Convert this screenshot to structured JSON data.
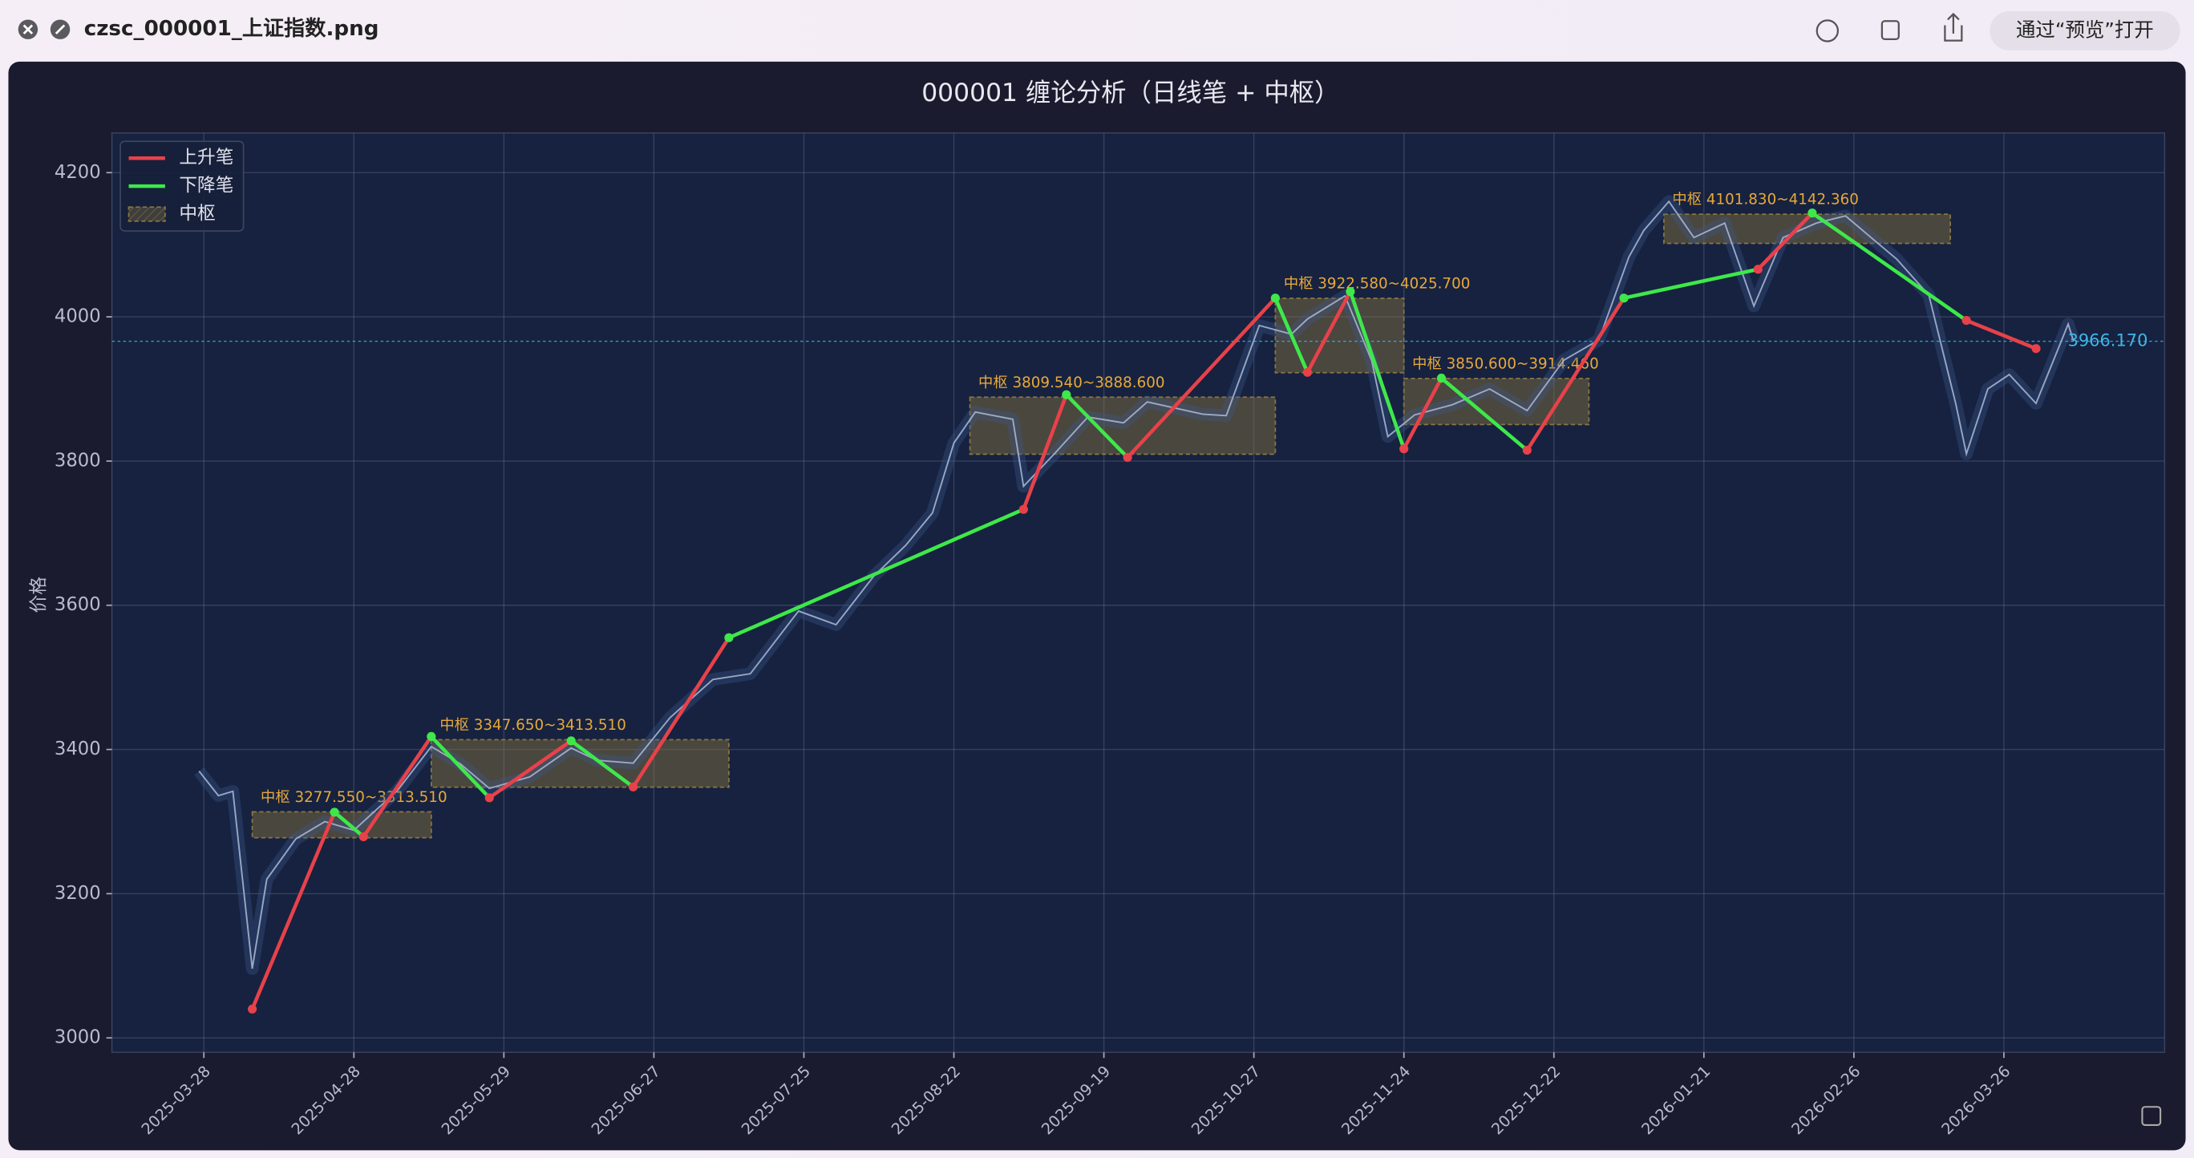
{
  "window": {
    "title": "czsc_000001_上证指数.png",
    "open_button": "通过“预览”打开"
  },
  "chart_data": {
    "type": "line",
    "title": "000001 缠论分析（日线笔 + 中枢）",
    "y_label": "价格",
    "xlim": [
      "2025-03-09",
      "2026-04-25"
    ],
    "xticks": [
      "2025-03-28",
      "2025-04-28",
      "2025-05-29",
      "2025-06-27",
      "2025-07-25",
      "2025-08-22",
      "2025-09-19",
      "2025-10-27",
      "2025-11-24",
      "2025-12-22",
      "2026-01-21",
      "2026-02-26",
      "2026-03-26"
    ],
    "ylim": [
      2980,
      4255
    ],
    "yticks": [
      3000,
      3200,
      3400,
      3600,
      3800,
      4000,
      4200
    ],
    "grid": true,
    "legend_position": "upper left",
    "price": {
      "color": "#aebbd6",
      "x": [
        "2025-03-27",
        "2025-03-31",
        "2025-04-03",
        "2025-04-07",
        "2025-04-10",
        "2025-04-16",
        "2025-04-22",
        "2025-04-28",
        "2025-05-07",
        "2025-05-14",
        "2025-05-20",
        "2025-05-26",
        "2025-06-03",
        "2025-06-11",
        "2025-06-16",
        "2025-06-23",
        "2025-06-30",
        "2025-07-08",
        "2025-07-15",
        "2025-07-24",
        "2025-07-31",
        "2025-08-07",
        "2025-08-13",
        "2025-08-18",
        "2025-08-22",
        "2025-08-26",
        "2025-09-02",
        "2025-09-04",
        "2025-09-10",
        "2025-09-16",
        "2025-09-24",
        "2025-09-30",
        "2025-10-14",
        "2025-10-20",
        "2025-10-28",
        "2025-11-03",
        "2025-11-06",
        "2025-11-13",
        "2025-11-18",
        "2025-11-21",
        "2025-11-26",
        "2025-12-03",
        "2025-12-10",
        "2025-12-17",
        "2025-12-24",
        "2025-12-31",
        "2026-01-06",
        "2026-01-09",
        "2026-01-14",
        "2026-01-19",
        "2026-01-26",
        "2026-02-02",
        "2026-02-09",
        "2026-02-17",
        "2026-02-24",
        "2026-03-02",
        "2026-03-06",
        "2026-03-12",
        "2026-03-17",
        "2026-03-19",
        "2026-03-23",
        "2026-03-27",
        "2026-04-01",
        "2026-04-07",
        "2026-04-08"
      ],
      "values": [
        3370,
        3336,
        3342,
        3096,
        3220,
        3276,
        3300,
        3288,
        3343,
        3404,
        3380,
        3346,
        3362,
        3402,
        3385,
        3381,
        3444,
        3497,
        3505,
        3592,
        3573,
        3640,
        3683,
        3728,
        3825,
        3868,
        3858,
        3765,
        3812,
        3861,
        3853,
        3882,
        3865,
        3863,
        3988,
        3976,
        3997,
        4029,
        3939,
        3834,
        3864,
        3878,
        3900,
        3870,
        3940,
        3968,
        4083,
        4120,
        4160,
        4110,
        4130,
        4015,
        4110,
        4130,
        4140,
        4105,
        4080,
        4030,
        3880,
        3810,
        3900,
        3920,
        3880,
        3990,
        3966.17
      ]
    },
    "series": [
      {
        "name": "上升笔",
        "color": "#e8414a",
        "x": [
          "2025-04-07",
          "2025-04-24",
          null,
          "2025-04-30",
          "2025-05-14",
          null,
          "2025-05-26",
          "2025-06-11",
          null,
          "2025-06-23",
          "2025-07-11",
          null,
          "2025-09-04",
          "2025-09-12",
          null,
          "2025-09-25",
          "2025-10-31",
          null,
          "2025-11-06",
          "2025-11-14",
          null,
          "2025-11-24",
          "2025-12-01",
          null,
          "2025-12-17",
          "2026-01-05",
          null,
          "2026-02-03",
          "2026-02-16",
          null,
          "2026-03-19",
          "2026-04-01"
        ],
        "values": [
          3040,
          3313,
          null,
          3279,
          3418,
          null,
          3333,
          3412,
          null,
          3348,
          3555,
          null,
          3733,
          3892,
          null,
          3805,
          4026,
          null,
          3923,
          4035,
          null,
          3817,
          3915,
          null,
          3815,
          4026,
          null,
          4066,
          4144,
          null,
          3995,
          3956
        ]
      },
      {
        "name": "下降笔",
        "color": "#3ee84a",
        "x": [
          "2025-04-24",
          "2025-04-30",
          null,
          "2025-05-14",
          "2025-05-26",
          null,
          "2025-06-11",
          "2025-06-23",
          null,
          "2025-07-11",
          "2025-09-04",
          null,
          "2025-09-12",
          "2025-09-25",
          null,
          "2025-10-31",
          "2025-11-06",
          null,
          "2025-11-14",
          "2025-11-24",
          null,
          "2025-12-01",
          "2025-12-17",
          null,
          "2026-01-05",
          "2026-02-03",
          null,
          "2026-02-16",
          "2026-03-19"
        ],
        "values": [
          3313,
          3279,
          null,
          3418,
          3333,
          null,
          3412,
          3348,
          null,
          3555,
          3733,
          null,
          3892,
          3805,
          null,
          4026,
          3923,
          null,
          4035,
          3817,
          null,
          3915,
          3815,
          null,
          4026,
          4066,
          null,
          4144,
          3995
        ]
      }
    ],
    "zhongshu_name": "中枢",
    "zhongshu_color": "#8a7640",
    "zhongshu": [
      {
        "label": "中枢 3277.550~3313.510",
        "start": "2025-04-07",
        "end": "2025-05-14",
        "low": 3277.55,
        "high": 3313.51
      },
      {
        "label": "中枢 3347.650~3413.510",
        "start": "2025-05-14",
        "end": "2025-07-11",
        "low": 3347.65,
        "high": 3413.51
      },
      {
        "label": "中枢 3809.540~3888.600",
        "start": "2025-08-25",
        "end": "2025-10-31",
        "low": 3809.54,
        "high": 3888.6
      },
      {
        "label": "中枢 3922.580~4025.700",
        "start": "2025-10-31",
        "end": "2025-11-24",
        "low": 3922.58,
        "high": 4025.7
      },
      {
        "label": "中枢 3850.600~3914.460",
        "start": "2025-11-24",
        "end": "2025-12-29",
        "low": 3850.6,
        "high": 3914.46
      },
      {
        "label": "中枢 4101.830~4142.360",
        "start": "2026-01-13",
        "end": "2026-03-16",
        "low": 4101.83,
        "high": 4142.36
      }
    ],
    "last_price": {
      "value": 3966.17,
      "label": "3966.170",
      "color": "#3fb6e8"
    }
  }
}
